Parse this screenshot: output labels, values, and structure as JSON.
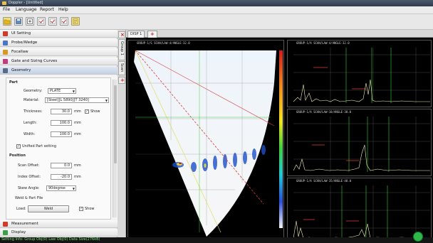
{
  "window": {
    "title": "Doppler - [Untitled]"
  },
  "menu": [
    "File",
    "Language",
    "Report",
    "Help"
  ],
  "toolbar": {
    "icons": [
      "open-folder-icon",
      "save-icon",
      "calibration-icon",
      "check-icon",
      "check-icon",
      "check-icon",
      "report-icon"
    ]
  },
  "sections": [
    {
      "label": "UI Setting",
      "icon": "ui-setting-icon",
      "color": "#d23a2a"
    },
    {
      "label": "Probe/Wedge",
      "icon": "probe-icon",
      "color": "#4b78c4"
    },
    {
      "label": "Focallaw",
      "icon": "focallaw-icon",
      "color": "#d89a1e"
    },
    {
      "label": "Gate and Sizing Curves",
      "icon": "gate-icon",
      "color": "#c43a80"
    },
    {
      "label": "Geometry",
      "icon": "geometry-icon",
      "color": "#5a6a86"
    }
  ],
  "geometry": {
    "part_header": "Part",
    "geometry_label": "Geometry:",
    "geometry_value": "PLATE",
    "material_label": "Material:",
    "material_value": "[Steel][L 5890][T 3240]",
    "thickness_label": "Thickness:",
    "thickness_value": "30.0",
    "thickness_unit": "mm",
    "show_label": "Show",
    "length_label": "Length:",
    "length_value": "100.0",
    "length_unit": "mm",
    "width_label": "Width:",
    "width_value": "100.0",
    "width_unit": "mm",
    "unified_label": "Unified Part setting",
    "position_header": "Position",
    "scan_offset_label": "Scan Offset:",
    "scan_offset_value": "0.0",
    "scan_offset_unit": "mm",
    "index_offset_label": "Index Offset:",
    "index_offset_value": "-20.0",
    "index_offset_unit": "mm",
    "skew_label": "Skew Angle:",
    "skew_value": "90degree",
    "weld_header": "Weld & Part File",
    "load_label": "Load:",
    "weld_button": "Weld",
    "weld_show_label": "Show"
  },
  "bottom_sections": [
    {
      "label": "Measurement",
      "icon": "measurement-icon",
      "color": "#d23a2a"
    },
    {
      "label": "Display",
      "icon": "display-icon",
      "color": "#3aa04a"
    }
  ],
  "side_tabs": [
    "Group 1",
    "Scan"
  ],
  "display_tabs": [
    {
      "label": "DISP 1"
    }
  ],
  "sector_title": "GROUP-1/S SCAN/LAW-4/ANGLE-32.0",
  "ascan_titles": [
    "GROUP-1/A SCAN/LAW-4/ANGLE-32.0",
    "GROUP-1/A SCAN/LAW-18/ANGLE-38.0",
    "GROUP-1/A SCAN/LAW-35/ANGLE-48.0"
  ],
  "status": {
    "text": "Setting Info: Group Obj(0) Law Obj(0) Data Size(276kB)"
  },
  "colors": {
    "gate_a": "#e23a3a",
    "gate_b": "#38b8d8",
    "cursor": "#3ad13a",
    "ascan_signal": "#f1f1b0"
  }
}
